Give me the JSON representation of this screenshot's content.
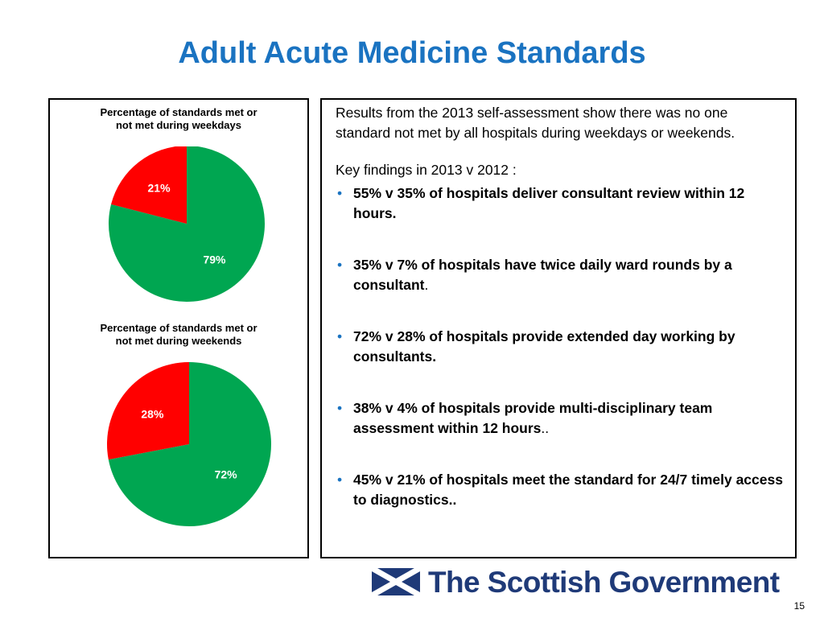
{
  "page": {
    "title": "Adult Acute Medicine Standards",
    "page_number": "15"
  },
  "colors": {
    "title": "#1a73c1",
    "met": "#00a651",
    "not_met": "#ff0000",
    "bullet": "#1a73c1",
    "logo": "#1f3a78"
  },
  "chart_data": [
    {
      "type": "pie",
      "title": "Percentage of standards met or not met during weekdays",
      "title_lines": [
        "Percentage of standards met or",
        "not met during weekdays"
      ],
      "values": [
        79,
        21
      ],
      "labels": [
        "79%",
        "21%"
      ],
      "colors": [
        "#00a651",
        "#ff0000"
      ],
      "legend": "none"
    },
    {
      "type": "pie",
      "title": "Percentage of standards met or not met during weekends",
      "title_lines": [
        "Percentage of standards met or",
        "not met during weekends"
      ],
      "values": [
        72,
        28
      ],
      "labels": [
        "72%",
        "28%"
      ],
      "colors": [
        "#00a651",
        "#ff0000"
      ],
      "legend": "none"
    }
  ],
  "findings_panel": {
    "intro": "Results from the 2013 self-assessment show there was no one standard not met by all hospitals during weekdays or weekends.",
    "key_label": "Key findings in 2013 v 2012 :",
    "bullet_glyph": "•",
    "items": [
      {
        "text": "55% v 35% of hospitals deliver consultant review within 12 hours.",
        "tail": ""
      },
      {
        "text": "35% v 7% of hospitals have twice daily ward rounds by a consultant",
        "tail": "."
      },
      {
        "text": "72% v 28% of hospitals provide extended day working by consultants.",
        "tail": ""
      },
      {
        "text": "38% v 4% of hospitals provide multi-disciplinary team assessment within 12 hours",
        "tail": ".."
      },
      {
        "text": "45%  v 21% of hospitals meet the standard for 24/7 timely access to diagnostics..",
        "tail": ""
      }
    ]
  },
  "logo": {
    "text": "The Scottish Government",
    "icon": "saltire-flag-icon"
  }
}
